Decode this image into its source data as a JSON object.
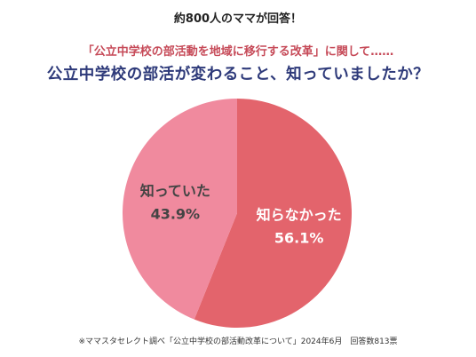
{
  "header": {
    "kicker": "約800人のママが回答！",
    "subtitle": "「公立中学校の部活動を地域に移行する改革」に関して……",
    "title": "公立中学校の部活が変わること、知っていましたか？"
  },
  "footer": {
    "source": "※ママスタセレクト調べ「公立中学校の部活動改革について」2024年6月　回答数813票"
  },
  "chart_data": {
    "type": "pie",
    "slices": [
      {
        "label": "知らなかった",
        "value": 56.1,
        "value_label": "56.1%",
        "color": "#e3646c",
        "text_color": "#ffffff"
      },
      {
        "label": "知っていた",
        "value": 43.9,
        "value_label": "43.9%",
        "color": "#f08a9e",
        "text_color": "#444444"
      }
    ]
  }
}
